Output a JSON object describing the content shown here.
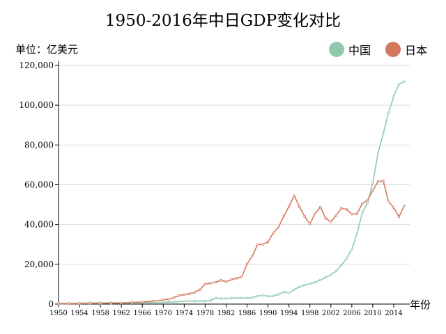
{
  "chart_data": {
    "type": "line",
    "title": "1950-2016年中日GDP变化对比",
    "ylabel": "单位：亿美元",
    "xlabel": "年份",
    "ylim": [
      0,
      120000
    ],
    "xlim": [
      1950,
      2016
    ],
    "y_ticks": [
      "0",
      "20,000",
      "40,000",
      "60,000",
      "80,000",
      "100,000",
      "120,000"
    ],
    "y_tick_values": [
      0,
      20000,
      40000,
      60000,
      80000,
      100000,
      120000
    ],
    "x_ticks": [
      "1950",
      "1954",
      "1958",
      "1962",
      "1966",
      "1970",
      "1974",
      "1978",
      "1982",
      "1986",
      "1990",
      "1994",
      "1998",
      "2002",
      "2006",
      "2010",
      "2014"
    ],
    "x_tick_values": [
      1950,
      1954,
      1958,
      1962,
      1966,
      1970,
      1974,
      1978,
      1982,
      1986,
      1990,
      1994,
      1998,
      2002,
      2006,
      2010,
      2014
    ],
    "grid": "horizontal",
    "legend_position": "top-right",
    "series": [
      {
        "name": "中国",
        "color": "#8fc9ad",
        "x": [
          1950,
          1952,
          1954,
          1956,
          1958,
          1960,
          1962,
          1964,
          1966,
          1968,
          1970,
          1972,
          1974,
          1976,
          1978,
          1979,
          1980,
          1981,
          1982,
          1983,
          1984,
          1985,
          1986,
          1987,
          1988,
          1989,
          1990,
          1991,
          1992,
          1993,
          1994,
          1995,
          1996,
          1997,
          1998,
          1999,
          2000,
          2001,
          2002,
          2003,
          2004,
          2005,
          2006,
          2007,
          2008,
          2009,
          2010,
          2011,
          2012,
          2013,
          2014,
          2015,
          2016
        ],
        "values": [
          300,
          400,
          450,
          500,
          600,
          600,
          500,
          600,
          750,
          700,
          900,
          1100,
          1400,
          1500,
          1500,
          1800,
          3000,
          2800,
          2800,
          3000,
          3100,
          3100,
          3000,
          3300,
          4000,
          4500,
          3900,
          4100,
          4900,
          6100,
          5600,
          7300,
          8600,
          9600,
          10300,
          10900,
          12100,
          13400,
          14700,
          16600,
          19600,
          22900,
          27500,
          35500,
          45900,
          51000,
          60900,
          75700,
          85700,
          96100,
          104400,
          110600,
          111900
        ]
      },
      {
        "name": "日本",
        "color": "#d3785c",
        "x": [
          1950,
          1952,
          1954,
          1956,
          1958,
          1960,
          1962,
          1964,
          1966,
          1968,
          1970,
          1971,
          1972,
          1973,
          1974,
          1975,
          1976,
          1977,
          1978,
          1979,
          1980,
          1981,
          1982,
          1983,
          1984,
          1985,
          1986,
          1987,
          1988,
          1989,
          1990,
          1991,
          1992,
          1993,
          1994,
          1995,
          1996,
          1997,
          1998,
          1999,
          2000,
          2001,
          2002,
          2003,
          2004,
          2005,
          2006,
          2007,
          2008,
          2009,
          2010,
          2011,
          2012,
          2013,
          2014,
          2015,
          2016
        ],
        "values": [
          100,
          200,
          250,
          300,
          350,
          450,
          600,
          800,
          1000,
          1500,
          2100,
          2400,
          3200,
          4300,
          4800,
          5200,
          5900,
          7300,
          10000,
          10500,
          11000,
          12000,
          11200,
          12300,
          13000,
          13800,
          20100,
          24200,
          29900,
          30100,
          31300,
          35800,
          38600,
          44200,
          49100,
          54500,
          48900,
          44100,
          40300,
          45600,
          48800,
          43100,
          41400,
          44500,
          48200,
          47600,
          45300,
          45400,
          50600,
          52300,
          57000,
          61600,
          62000,
          51600,
          48500,
          43900,
          49400
        ]
      }
    ]
  }
}
